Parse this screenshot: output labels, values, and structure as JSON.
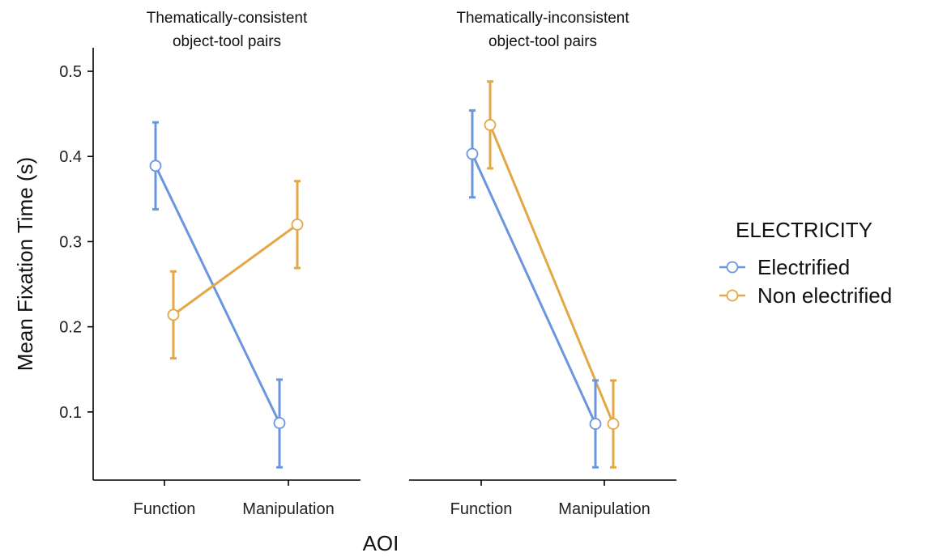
{
  "chart_data": {
    "type": "line",
    "ylabel": "Mean Fixation Time (s)",
    "xlabel": "AOI",
    "categories": [
      "Function",
      "Manipulation"
    ],
    "yticks": [
      "0.1",
      "0.2",
      "0.3",
      "0.4",
      "0.5"
    ],
    "ylim": [
      0.02,
      0.52
    ],
    "legend": {
      "title": "ELECTRICITY",
      "placement": "right"
    },
    "series_styles": [
      {
        "name": "Electrified",
        "color": "#6A96E0"
      },
      {
        "name": "Non electrified",
        "color": "#E3A845"
      }
    ],
    "panels": [
      {
        "title_lines": [
          "Thematically-consistent",
          "object-tool pairs"
        ],
        "series": [
          {
            "name": "Electrified",
            "values": [
              0.389,
              0.087
            ],
            "lower": [
              0.338,
              0.035
            ],
            "upper": [
              0.44,
              0.138
            ]
          },
          {
            "name": "Non electrified",
            "values": [
              0.214,
              0.32
            ],
            "lower": [
              0.163,
              0.269
            ],
            "upper": [
              0.265,
              0.371
            ]
          }
        ]
      },
      {
        "title_lines": [
          "Thematically-inconsistent",
          "object-tool pairs"
        ],
        "series": [
          {
            "name": "Electrified",
            "values": [
              0.403,
              0.086
            ],
            "lower": [
              0.352,
              0.035
            ],
            "upper": [
              0.454,
              0.137
            ]
          },
          {
            "name": "Non electrified",
            "values": [
              0.437,
              0.086
            ],
            "lower": [
              0.386,
              0.035
            ],
            "upper": [
              0.488,
              0.137
            ]
          }
        ]
      }
    ]
  }
}
